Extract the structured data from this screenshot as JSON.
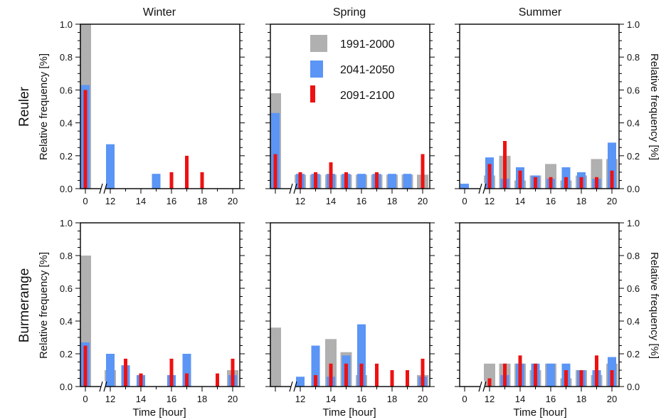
{
  "figure": {
    "column_titles": [
      "Winter",
      "Spring",
      "Summer"
    ],
    "row_titles": [
      "Reuler",
      "Burmerange"
    ],
    "ylabel": "Relative frequency [%]",
    "xlabel": "Time [hour]",
    "legend": [
      {
        "label": "1991-2000",
        "color": "#b0b0b0"
      },
      {
        "label": "2041-2050",
        "color": "#5b95f5"
      },
      {
        "label": "2091-2100",
        "color": "#ee1111"
      }
    ]
  },
  "chart_data": [
    {
      "type": "bar",
      "panel": "reuler-winter",
      "row": "Reuler",
      "column": "Winter",
      "x_ticks": [
        0,
        12,
        14,
        16,
        18,
        20
      ],
      "y_ticks": [
        0.0,
        0.2,
        0.4,
        0.6,
        0.8,
        1.0
      ],
      "ylim": [
        0,
        1
      ],
      "series": [
        {
          "name": "1991-2000",
          "x": [
            0
          ],
          "values": [
            1.0
          ]
        },
        {
          "name": "2041-2050",
          "x": [
            0,
            12,
            15
          ],
          "values": [
            0.63,
            0.27,
            0.09
          ]
        },
        {
          "name": "2091-2100",
          "x": [
            0,
            16,
            17,
            18
          ],
          "values": [
            0.6,
            0.1,
            0.2,
            0.1
          ]
        }
      ]
    },
    {
      "type": "bar",
      "panel": "reuler-spring",
      "row": "Reuler",
      "column": "Spring",
      "x_ticks": [
        12,
        14,
        16,
        18,
        20
      ],
      "y_ticks": [
        0.0,
        0.2,
        0.4,
        0.6,
        0.8,
        1.0
      ],
      "ylim": [
        0,
        1
      ],
      "series": [
        {
          "name": "1991-2000",
          "x": [
            0,
            12,
            13,
            14,
            15,
            16,
            17,
            18,
            19,
            20
          ],
          "values": [
            0.58,
            0.085,
            0.085,
            0.085,
            0.085,
            0.085,
            0.085,
            0.085,
            0.085,
            0.085
          ]
        },
        {
          "name": "2041-2050",
          "x": [
            0,
            12,
            13,
            14,
            15,
            16,
            17,
            18,
            19
          ],
          "values": [
            0.46,
            0.09,
            0.09,
            0.09,
            0.09,
            0.09,
            0.09,
            0.09,
            0.09
          ]
        },
        {
          "name": "2091-2100",
          "x": [
            0,
            12,
            13,
            14,
            15,
            17,
            20
          ],
          "values": [
            0.21,
            0.1,
            0.1,
            0.16,
            0.1,
            0.1,
            0.21
          ]
        }
      ]
    },
    {
      "type": "bar",
      "panel": "reuler-summer",
      "row": "Reuler",
      "column": "Summer",
      "x_ticks": [
        0,
        12,
        14,
        16,
        18,
        20
      ],
      "y_ticks": [
        0.0,
        0.2,
        0.4,
        0.6,
        0.8,
        1.0
      ],
      "ylim": [
        0,
        1
      ],
      "series": [
        {
          "name": "1991-2000",
          "x": [
            12,
            13,
            14,
            15,
            16,
            17,
            18,
            19,
            20
          ],
          "values": [
            0.08,
            0.2,
            0.05,
            0.08,
            0.15,
            0.05,
            0.08,
            0.18,
            0.18
          ]
        },
        {
          "name": "2041-2050",
          "x": [
            0,
            12,
            13,
            14,
            15,
            16,
            17,
            18,
            19,
            20
          ],
          "values": [
            0.03,
            0.19,
            0.06,
            0.13,
            0.08,
            0.06,
            0.13,
            0.1,
            0.06,
            0.28
          ]
        },
        {
          "name": "2091-2100",
          "x": [
            12,
            13,
            14,
            15,
            16,
            17,
            18,
            19,
            20
          ],
          "values": [
            0.15,
            0.29,
            0.11,
            0.07,
            0.07,
            0.07,
            0.07,
            0.07,
            0.11
          ]
        }
      ]
    },
    {
      "type": "bar",
      "panel": "burmerange-winter",
      "row": "Burmerange",
      "column": "Winter",
      "x_ticks": [
        0,
        12,
        14,
        16,
        18,
        20
      ],
      "y_ticks": [
        0.0,
        0.2,
        0.4,
        0.6,
        0.8,
        1.0
      ],
      "ylim": [
        0,
        1
      ],
      "series": [
        {
          "name": "1991-2000",
          "x": [
            0,
            12,
            20
          ],
          "values": [
            0.8,
            0.1,
            0.1
          ]
        },
        {
          "name": "2041-2050",
          "x": [
            0,
            12,
            13,
            14,
            16,
            17,
            20
          ],
          "values": [
            0.27,
            0.2,
            0.13,
            0.07,
            0.07,
            0.2,
            0.07
          ]
        },
        {
          "name": "2091-2100",
          "x": [
            0,
            13,
            14,
            16,
            17,
            19,
            20
          ],
          "values": [
            0.25,
            0.17,
            0.08,
            0.17,
            0.08,
            0.08,
            0.17
          ]
        }
      ]
    },
    {
      "type": "bar",
      "panel": "burmerange-spring",
      "row": "Burmerange",
      "column": "Spring",
      "x_ticks": [
        12,
        14,
        16,
        18,
        20
      ],
      "y_ticks": [
        0.0,
        0.2,
        0.4,
        0.6,
        0.8,
        1.0
      ],
      "ylim": [
        0,
        1
      ],
      "series": [
        {
          "name": "1991-2000",
          "x": [
            0,
            14,
            15,
            16,
            20
          ],
          "values": [
            0.36,
            0.29,
            0.21,
            0.07,
            0.07
          ]
        },
        {
          "name": "2041-2050",
          "x": [
            12,
            13,
            14,
            15,
            16,
            20
          ],
          "values": [
            0.06,
            0.25,
            0.06,
            0.19,
            0.38,
            0.06
          ]
        },
        {
          "name": "2091-2100",
          "x": [
            13,
            14,
            15,
            16,
            17,
            18,
            19,
            20
          ],
          "values": [
            0.07,
            0.14,
            0.14,
            0.14,
            0.14,
            0.1,
            0.1,
            0.17
          ]
        }
      ]
    },
    {
      "type": "bar",
      "panel": "burmerange-summer",
      "row": "Burmerange",
      "column": "Summer",
      "x_ticks": [
        0,
        12,
        14,
        16,
        18,
        20
      ],
      "y_ticks": [
        0.0,
        0.2,
        0.4,
        0.6,
        0.8,
        1.0
      ],
      "ylim": [
        0,
        1
      ],
      "series": [
        {
          "name": "1991-2000",
          "x": [
            12,
            13,
            14,
            15,
            16,
            17,
            18,
            19,
            20
          ],
          "values": [
            0.14,
            0.14,
            0.14,
            0.1,
            0.14,
            0.05,
            0.1,
            0.07,
            0.14
          ]
        },
        {
          "name": "2041-2050",
          "x": [
            13,
            14,
            15,
            16,
            17,
            18,
            19,
            20
          ],
          "values": [
            0.07,
            0.14,
            0.14,
            0.14,
            0.14,
            0.1,
            0.1,
            0.18
          ]
        },
        {
          "name": "2091-2100",
          "x": [
            12,
            13,
            14,
            15,
            17,
            18,
            19,
            20
          ],
          "values": [
            0.05,
            0.14,
            0.19,
            0.14,
            0.1,
            0.1,
            0.19,
            0.1
          ]
        }
      ]
    }
  ]
}
